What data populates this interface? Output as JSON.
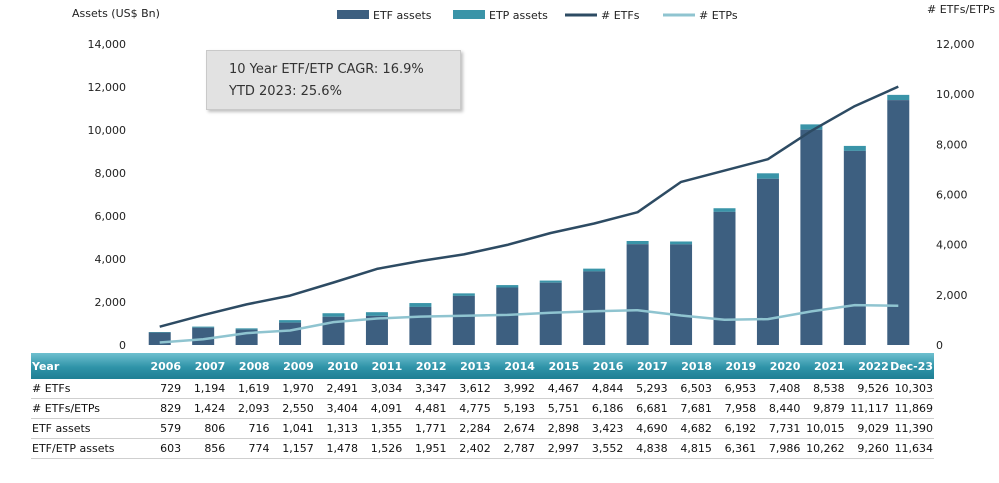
{
  "chart_data": {
    "type": "bar",
    "categories": [
      "2006",
      "2007",
      "2008",
      "2009",
      "2010",
      "2011",
      "2012",
      "2013",
      "2014",
      "2015",
      "2016",
      "2017",
      "2018",
      "2019",
      "2020",
      "2021",
      "2022",
      "Dec-23"
    ],
    "series": [
      {
        "name": "ETF assets",
        "type": "bar",
        "axis": "left",
        "color": "#3d5f80",
        "values": [
          579,
          806,
          716,
          1041,
          1313,
          1355,
          1771,
          2284,
          2674,
          2898,
          3423,
          4690,
          4682,
          6192,
          7731,
          10015,
          9029,
          11390
        ]
      },
      {
        "name": "ETP assets",
        "type": "bar-stack-top",
        "axis": "left",
        "color": "#3a94a8",
        "values": [
          603,
          856,
          774,
          1157,
          1478,
          1526,
          1951,
          2402,
          2787,
          2997,
          3552,
          4838,
          4815,
          6361,
          7986,
          10262,
          9260,
          11634
        ]
      },
      {
        "name": "# ETFs",
        "type": "line",
        "axis": "right",
        "color": "#2d4b63",
        "values": [
          729,
          1194,
          1619,
          1970,
          2491,
          3034,
          3347,
          3612,
          3992,
          4467,
          4844,
          5293,
          6503,
          6953,
          7408,
          8538,
          9526,
          10303
        ]
      },
      {
        "name": "# ETPs",
        "type": "line",
        "axis": "right",
        "color": "#8fc4d0",
        "values": [
          100,
          230,
          474,
          580,
          913,
          1057,
          1134,
          1163,
          1201,
          1284,
          1342,
          1388,
          1178,
          1005,
          1032,
          1341,
          1591,
          1566
        ]
      }
    ],
    "ylabel_left": "Assets (US$ Bn)",
    "ylabel_right": "# ETFs/ETPs",
    "ylim_left": [
      0,
      14000
    ],
    "ylim_right": [
      0,
      12000
    ],
    "yticks_left": [
      "0",
      "2,000",
      "4,000",
      "6,000",
      "8,000",
      "10,000",
      "12,000",
      "14,000"
    ],
    "yticks_right": [
      "0",
      "2,000",
      "4,000",
      "6,000",
      "8,000",
      "10,000",
      "12,000"
    ],
    "legend_position": "top-center",
    "grid": false
  },
  "annotation": {
    "line1": "10 Year ETF/ETP CAGR: 16.9%",
    "line2": "YTD 2023: 25.6%"
  },
  "table": {
    "header_label": "Year",
    "years": [
      "2006",
      "2007",
      "2008",
      "2009",
      "2010",
      "2011",
      "2012",
      "2013",
      "2014",
      "2015",
      "2016",
      "2017",
      "2018",
      "2019",
      "2020",
      "2021",
      "2022",
      "Dec-23"
    ],
    "rows": [
      {
        "label": "# ETFs",
        "values": [
          "729",
          "1,194",
          "1,619",
          "1,970",
          "2,491",
          "3,034",
          "3,347",
          "3,612",
          "3,992",
          "4,467",
          "4,844",
          "5,293",
          "6,503",
          "6,953",
          "7,408",
          "8,538",
          "9,526",
          "10,303"
        ]
      },
      {
        "label": "# ETFs/ETPs",
        "values": [
          "829",
          "1,424",
          "2,093",
          "2,550",
          "3,404",
          "4,091",
          "4,481",
          "4,775",
          "5,193",
          "5,751",
          "6,186",
          "6,681",
          "7,681",
          "7,958",
          "8,440",
          "9,879",
          "11,117",
          "11,869"
        ]
      },
      {
        "label": "ETF assets",
        "values": [
          "579",
          "806",
          "716",
          "1,041",
          "1,313",
          "1,355",
          "1,771",
          "2,284",
          "2,674",
          "2,898",
          "3,423",
          "4,690",
          "4,682",
          "6,192",
          "7,731",
          "10,015",
          "9,029",
          "11,390"
        ]
      },
      {
        "label": "ETF/ETP assets",
        "values": [
          "603",
          "856",
          "774",
          "1,157",
          "1,478",
          "1,526",
          "1,951",
          "2,402",
          "2,787",
          "2,997",
          "3,552",
          "4,838",
          "4,815",
          "6,361",
          "7,986",
          "10,262",
          "9,260",
          "11,634"
        ]
      }
    ]
  }
}
